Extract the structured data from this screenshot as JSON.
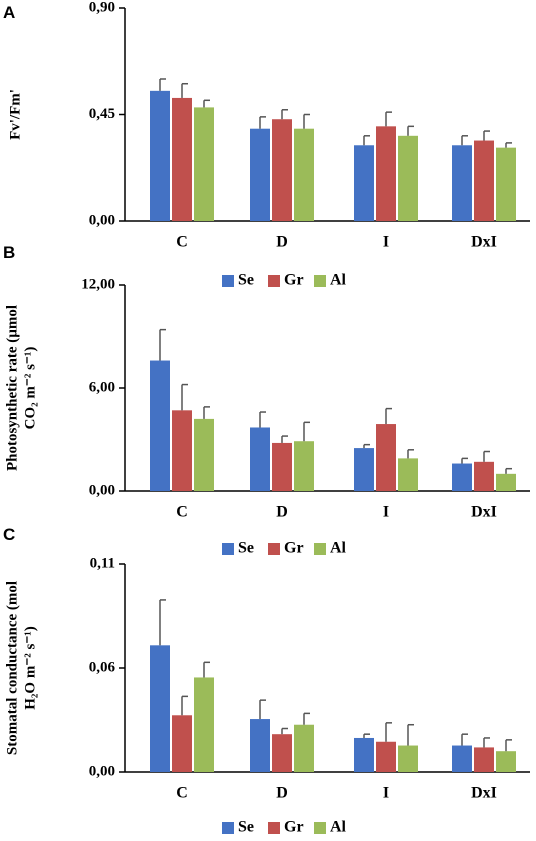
{
  "colors": {
    "Se": "#4472C4",
    "Gr": "#C0504D",
    "Al": "#9BBB59",
    "axis": "#000000",
    "error": "#555555"
  },
  "chart_data": [
    {
      "type": "bar",
      "panel_label": "A",
      "ylabel_lines": [
        "Fv'/Fm'"
      ],
      "categories": [
        "C",
        "D",
        "I",
        "DxI"
      ],
      "ylim": [
        0,
        0.9
      ],
      "yticks": [
        "0,00",
        "0,45",
        "0,90"
      ],
      "grid": false,
      "legend_position": "bottom",
      "series": [
        {
          "name": "Se",
          "values": [
            0.55,
            0.39,
            0.32,
            0.32
          ],
          "errors": [
            0.05,
            0.05,
            0.04,
            0.04
          ]
        },
        {
          "name": "Gr",
          "values": [
            0.52,
            0.43,
            0.4,
            0.34
          ],
          "errors": [
            0.06,
            0.04,
            0.06,
            0.04
          ]
        },
        {
          "name": "Al",
          "values": [
            0.48,
            0.39,
            0.36,
            0.31
          ],
          "errors": [
            0.03,
            0.06,
            0.04,
            0.02
          ]
        }
      ]
    },
    {
      "type": "bar",
      "panel_label": "B",
      "ylabel_lines": [
        "Photosynthetic rate (µmol",
        "CO₂ m⁻² s⁻¹)"
      ],
      "categories": [
        "C",
        "D",
        "I",
        "DxI"
      ],
      "ylim": [
        0,
        12
      ],
      "yticks": [
        "0,00",
        "6,00",
        "12,00"
      ],
      "grid": false,
      "legend_position": "bottom",
      "series": [
        {
          "name": "Se",
          "values": [
            7.6,
            3.7,
            2.5,
            1.6
          ],
          "errors": [
            1.8,
            0.9,
            0.2,
            0.3
          ]
        },
        {
          "name": "Gr",
          "values": [
            4.7,
            2.8,
            3.9,
            1.7
          ],
          "errors": [
            1.5,
            0.4,
            0.9,
            0.6
          ]
        },
        {
          "name": "Al",
          "values": [
            4.2,
            2.9,
            1.9,
            1.0
          ],
          "errors": [
            0.7,
            1.1,
            0.5,
            0.3
          ]
        }
      ]
    },
    {
      "type": "bar",
      "panel_label": "C",
      "ylabel_lines": [
        "Stomatal conductance (mol",
        "H₂O m⁻² s⁻¹)"
      ],
      "categories": [
        "C",
        "D",
        "I",
        "DxI"
      ],
      "ylim": [
        0,
        0.11
      ],
      "yticks": [
        "0,00",
        "0,06",
        "0,11"
      ],
      "grid": false,
      "legend_position": "bottom",
      "series": [
        {
          "name": "Se",
          "values": [
            0.067,
            0.028,
            0.018,
            0.014
          ],
          "errors": [
            0.024,
            0.01,
            0.002,
            0.006
          ]
        },
        {
          "name": "Gr",
          "values": [
            0.03,
            0.02,
            0.016,
            0.013
          ],
          "errors": [
            0.01,
            0.003,
            0.01,
            0.005
          ]
        },
        {
          "name": "Al",
          "values": [
            0.05,
            0.025,
            0.014,
            0.011
          ],
          "errors": [
            0.008,
            0.006,
            0.011,
            0.006
          ]
        }
      ]
    }
  ]
}
